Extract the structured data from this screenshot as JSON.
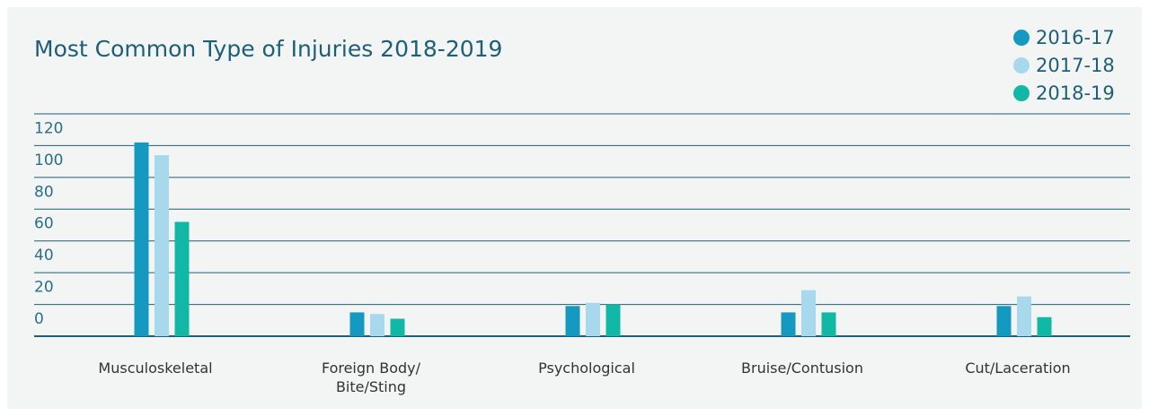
{
  "chart_data": {
    "type": "bar",
    "title": "Most Common Type of Injuries 2018-2019",
    "categories": [
      "Musculoskeletal",
      "Foreign Body/\nBite/Sting",
      "Psychological",
      "Bruise/Contusion",
      "Cut/Laceration"
    ],
    "series": [
      {
        "name": "2016-17",
        "color": "#1699c1",
        "values": [
          122,
          15,
          19,
          15,
          19
        ]
      },
      {
        "name": "2017-18",
        "color": "#a7d8eb",
        "values": [
          114,
          14,
          21,
          29,
          25
        ]
      },
      {
        "name": "2018-19",
        "color": "#11b8a6",
        "values": [
          72,
          11,
          20,
          15,
          12
        ]
      }
    ],
    "ylim": [
      0,
      140
    ],
    "yticks": [
      0,
      20,
      40,
      60,
      80,
      100,
      120
    ],
    "grid": true,
    "legend": "top-right"
  }
}
